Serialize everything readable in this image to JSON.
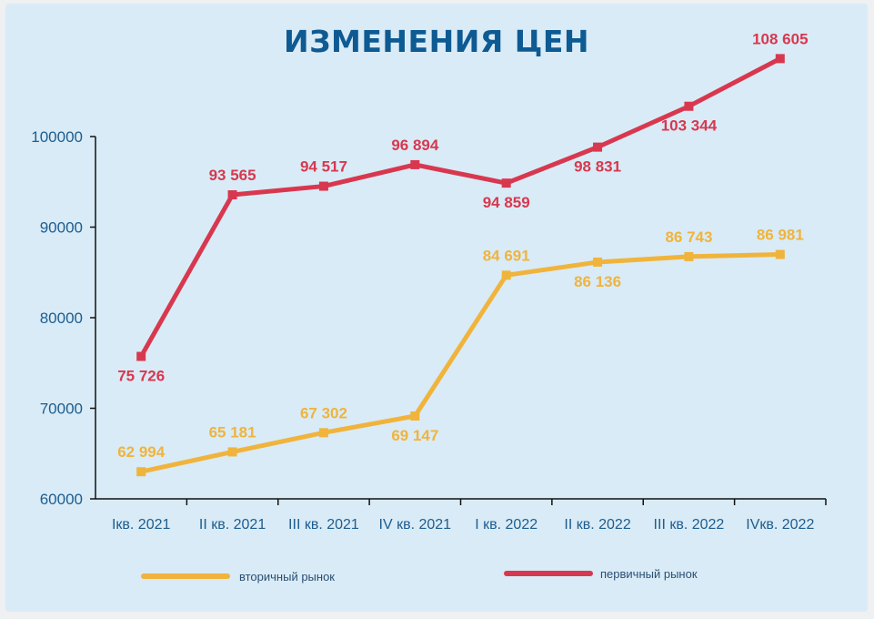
{
  "chart_data": {
    "type": "line",
    "title": "ИЗМЕНЕНИЯ ЦЕН",
    "categories": [
      "Iкв. 2021",
      "II кв. 2021",
      "III кв. 2021",
      "IV кв. 2021",
      "I кв. 2022",
      "II кв. 2022",
      "III кв. 2022",
      "IVкв. 2022"
    ],
    "ylim": [
      60000,
      100000
    ],
    "yticks": [
      "60000",
      "70000",
      "80000",
      "90000",
      "100000"
    ],
    "series": [
      {
        "name": "первичный рынок",
        "color": "#d8384f",
        "values": [
          75726,
          93565,
          94517,
          96894,
          94859,
          98831,
          103344,
          108605
        ],
        "labels": [
          "75 726",
          "93 565",
          "94 517",
          "96 894",
          "94 859",
          "98 831",
          "103 344",
          "108 605"
        ],
        "label_pos": [
          "below",
          "above",
          "above",
          "above",
          "below",
          "below",
          "below",
          "above"
        ]
      },
      {
        "name": "вторичный рынок",
        "color": "#f0b43c",
        "values": [
          62994,
          65181,
          67302,
          69147,
          84691,
          86136,
          86743,
          86981
        ],
        "labels": [
          "62 994",
          "65 181",
          "67 302",
          "69 147",
          "84 691",
          "86 136",
          "86 743",
          "86 981"
        ],
        "label_pos": [
          "above",
          "above",
          "above",
          "below",
          "above",
          "below",
          "above",
          "above"
        ]
      }
    ],
    "legend": [
      {
        "name": "вторичный рынок",
        "color": "#f0b43c"
      },
      {
        "name": "первичный рынок",
        "color": "#d8384f"
      }
    ],
    "legend_position": "bottom",
    "grid": false
  }
}
